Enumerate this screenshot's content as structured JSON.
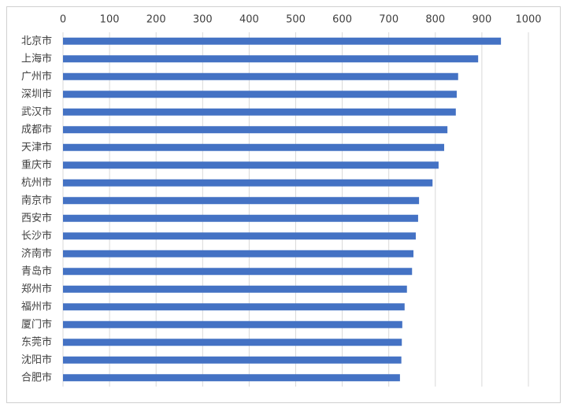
{
  "chart_data": {
    "type": "bar",
    "orientation": "horizontal",
    "categories": [
      "北京市",
      "上海市",
      "广州市",
      "深圳市",
      "武汉市",
      "成都市",
      "天津市",
      "重庆市",
      "杭州市",
      "南京市",
      "西安市",
      "长沙市",
      "济南市",
      "青岛市",
      "郑州市",
      "福州市",
      "厦门市",
      "东莞市",
      "沈阳市",
      "合肥市"
    ],
    "values": [
      941,
      892,
      849,
      846,
      844,
      826,
      819,
      807,
      794,
      765,
      763,
      758,
      753,
      750,
      739,
      734,
      729,
      728,
      727,
      724
    ],
    "color": "#4472c4",
    "xlim": [
      0,
      1000
    ],
    "xticks": [
      0,
      100,
      200,
      300,
      400,
      500,
      600,
      700,
      800,
      900,
      1000
    ],
    "grid": true
  }
}
